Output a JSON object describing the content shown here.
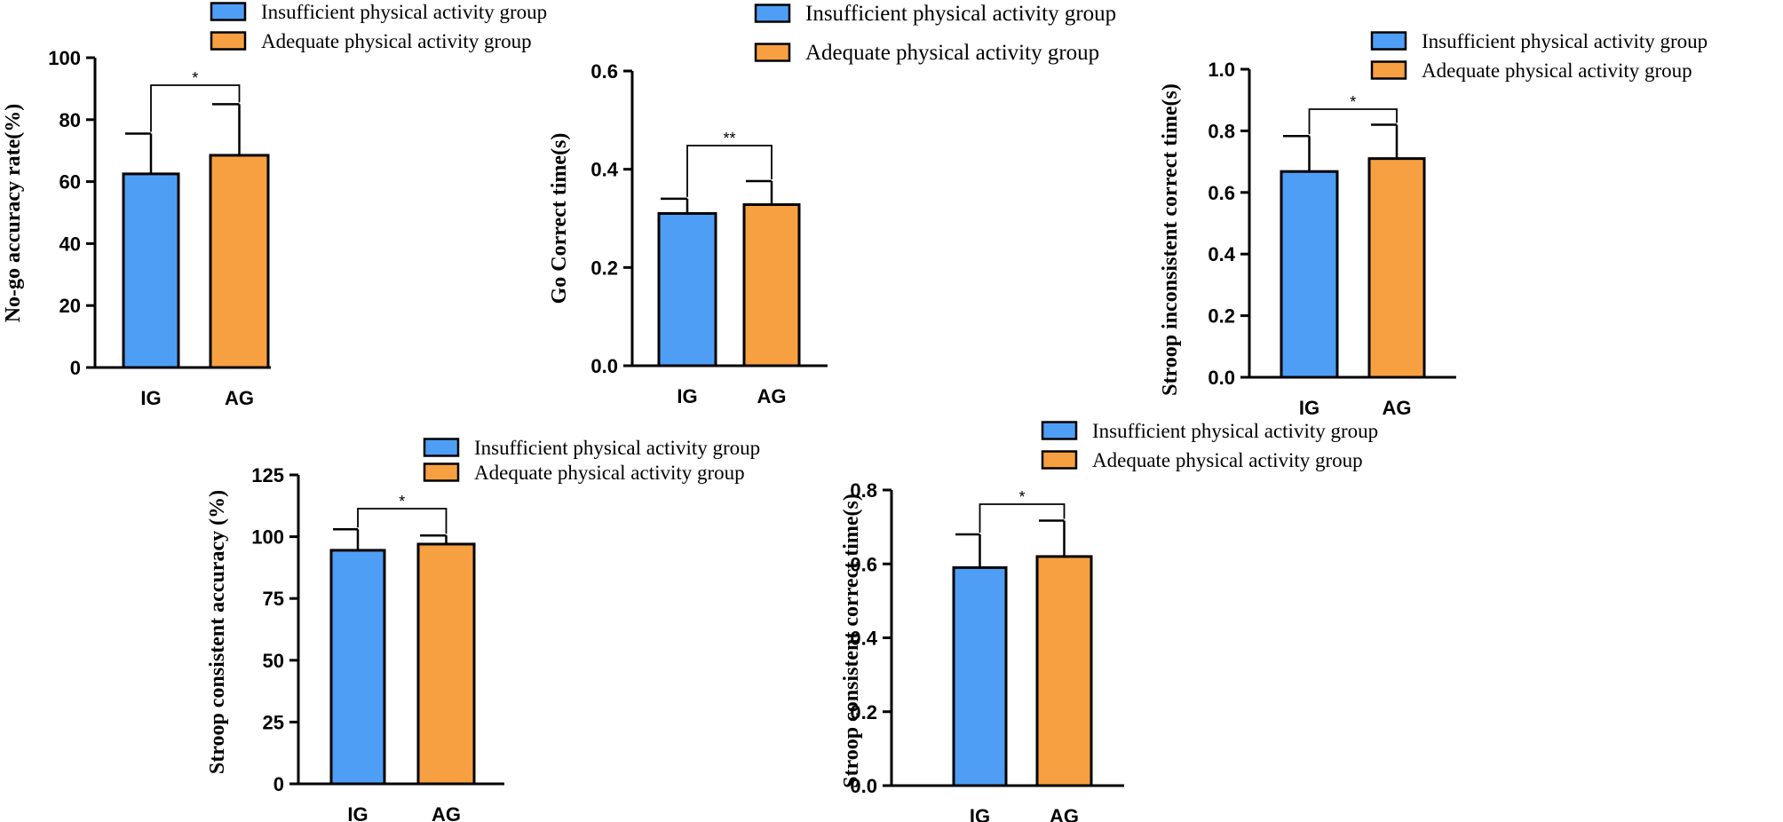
{
  "legend": {
    "ig_label": "Insufficient physical activity group",
    "ag_label": "Adequate physical activity group"
  },
  "colors": {
    "ig": "#4f9ef5",
    "ag": "#f7a041",
    "stroke": "#000000"
  },
  "chart_data": [
    {
      "type": "bar",
      "categories": [
        "IG",
        "AG"
      ],
      "values": [
        62.5,
        68.5
      ],
      "errors": [
        13,
        16.5
      ],
      "ylabel": "No-go accuracy rate(%)",
      "ylim": [
        0,
        100
      ],
      "yticks": [
        "0",
        "20",
        "40",
        "60",
        "80",
        "100"
      ],
      "significance": "*"
    },
    {
      "type": "bar",
      "categories": [
        "IG",
        "AG"
      ],
      "values": [
        0.31,
        0.328
      ],
      "errors": [
        0.03,
        0.048
      ],
      "ylabel": "Go Correct time(s)",
      "ylim": [
        0,
        0.6
      ],
      "yticks": [
        "0.0",
        "0.2",
        "0.4",
        "0.6"
      ],
      "significance": "**"
    },
    {
      "type": "bar",
      "categories": [
        "IG",
        "AG"
      ],
      "values": [
        0.668,
        0.71
      ],
      "errors": [
        0.115,
        0.11
      ],
      "ylabel": "Stroop inconsistent correct time(s)",
      "ylim": [
        0,
        1.0
      ],
      "yticks": [
        "0.0",
        "0.2",
        "0.4",
        "0.6",
        "0.8",
        "1.0"
      ],
      "significance": "*"
    },
    {
      "type": "bar",
      "categories": [
        "IG",
        "AG"
      ],
      "values": [
        94.5,
        97
      ],
      "errors": [
        8.5,
        3.5
      ],
      "ylabel": "Stroop consistent accuracy (%)",
      "ylim": [
        0,
        125
      ],
      "yticks": [
        "0",
        "25",
        "50",
        "75",
        "100",
        "125"
      ],
      "significance": "*"
    },
    {
      "type": "bar",
      "categories": [
        "IG",
        "AG"
      ],
      "values": [
        0.59,
        0.62
      ],
      "errors": [
        0.09,
        0.097
      ],
      "ylabel": "Stroop consistent correct time(s)",
      "ylim": [
        0,
        0.8
      ],
      "yticks": [
        "0.0",
        "0.2",
        "0.4",
        "0.6",
        "0.8"
      ],
      "significance": "*"
    }
  ]
}
